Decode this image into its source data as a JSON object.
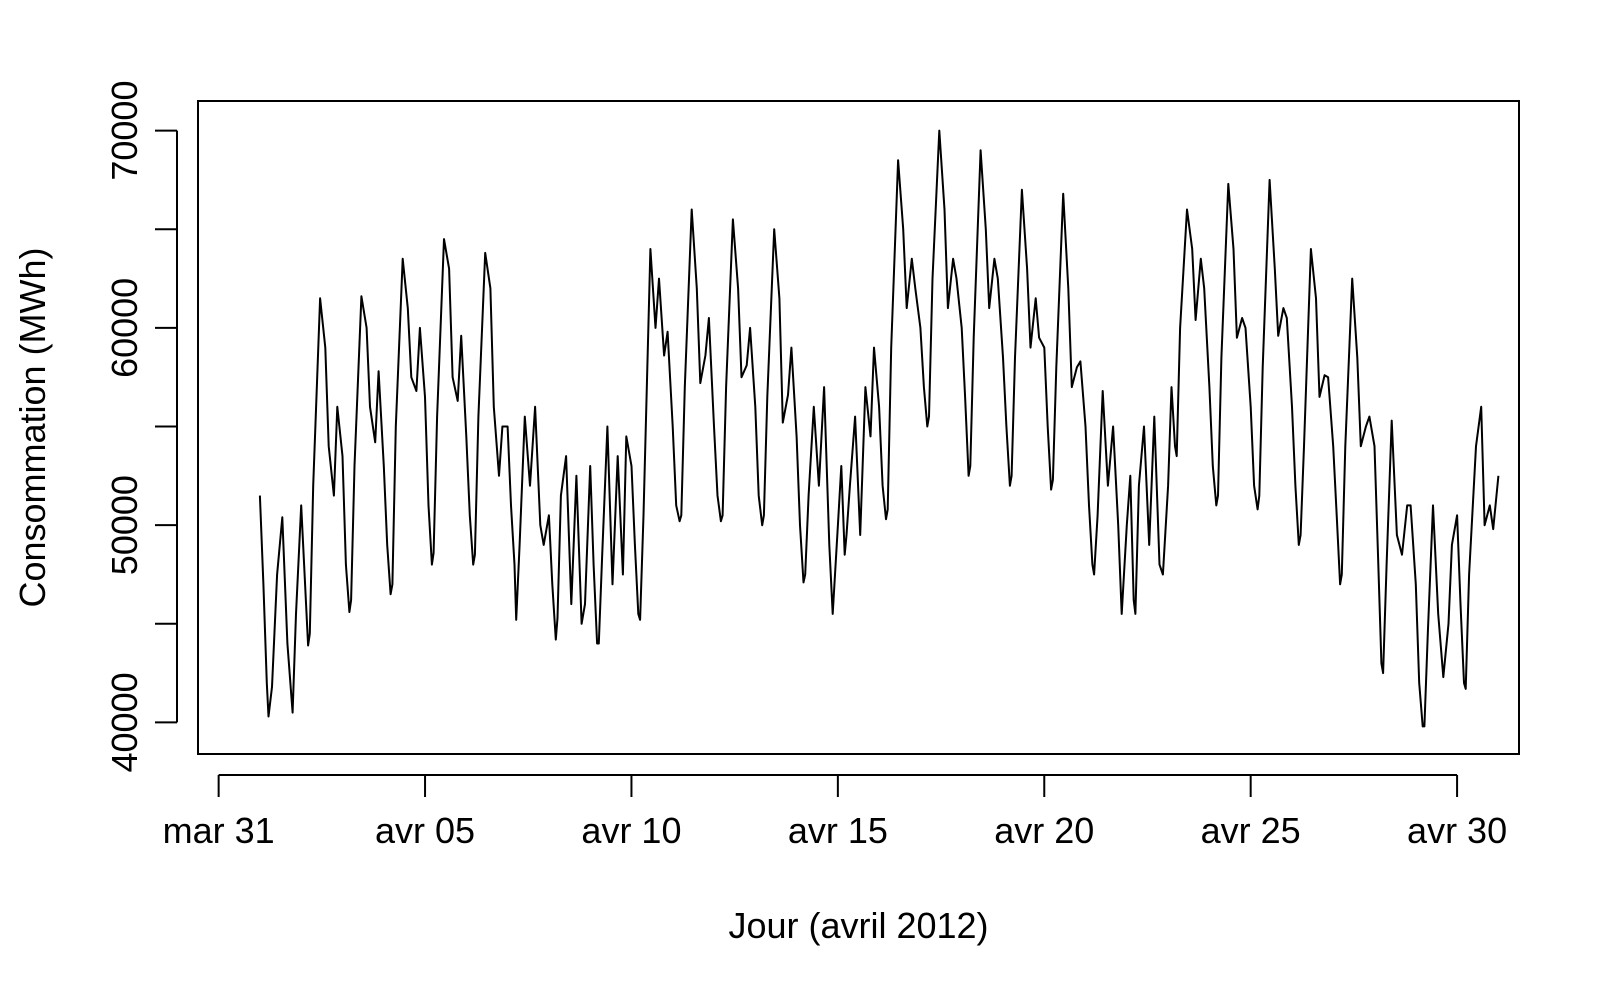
{
  "chart_data": {
    "type": "line",
    "xlabel": "Jour (avril 2012)",
    "ylabel": "Consommation (MWh)",
    "xlim": [
      "2012-03-30T12:00",
      "2012-05-01T12:00"
    ],
    "ylim": [
      38400,
      71500
    ],
    "x_ticks": [
      {
        "date": "2012-03-31",
        "label": "mar 31"
      },
      {
        "date": "2012-04-05",
        "label": "avr 05"
      },
      {
        "date": "2012-04-10",
        "label": "avr 10"
      },
      {
        "date": "2012-04-15",
        "label": "avr 15"
      },
      {
        "date": "2012-04-20",
        "label": "avr 20"
      },
      {
        "date": "2012-04-25",
        "label": "avr 25"
      },
      {
        "date": "2012-04-30",
        "label": "avr 30"
      }
    ],
    "y_ticks": [
      {
        "value": 40000,
        "label": "40000"
      },
      {
        "value": 45000,
        "label": ""
      },
      {
        "value": 50000,
        "label": "50000"
      },
      {
        "value": 55000,
        "label": ""
      },
      {
        "value": 60000,
        "label": "60000"
      },
      {
        "value": 65000,
        "label": ""
      },
      {
        "value": 70000,
        "label": "70000"
      }
    ],
    "grid": false,
    "legend": "none",
    "line_color": "#000000",
    "series": [
      {
        "x": [
          "2012-04-01T00:00",
          "2012-04-01T02:00",
          "2012-04-01T04:00",
          "2012-04-01T05:00",
          "2012-04-01T07:00",
          "2012-04-01T10:00",
          "2012-04-01T13:00",
          "2012-04-01T16:00",
          "2012-04-01T19:00",
          "2012-04-01T21:00",
          "2012-04-02T00:00",
          "2012-04-02T02:00",
          "2012-04-02T04:00",
          "2012-04-02T05:00",
          "2012-04-02T07:00",
          "2012-04-02T11:00",
          "2012-04-02T14:00",
          "2012-04-02T16:00",
          "2012-04-02T19:00",
          "2012-04-02T21:00",
          "2012-04-03T00:00",
          "2012-04-03T02:00",
          "2012-04-03T04:00",
          "2012-04-03T05:00",
          "2012-04-03T07:00",
          "2012-04-03T11:00",
          "2012-04-03T14:00",
          "2012-04-03T16:00",
          "2012-04-03T19:00",
          "2012-04-03T21:00",
          "2012-04-04T00:00",
          "2012-04-04T02:00",
          "2012-04-04T04:00",
          "2012-04-04T05:00",
          "2012-04-04T07:00",
          "2012-04-04T11:00",
          "2012-04-04T14:00",
          "2012-04-04T16:00",
          "2012-04-04T19:00",
          "2012-04-04T21:00",
          "2012-04-05T00:00",
          "2012-04-05T02:00",
          "2012-04-05T04:00",
          "2012-04-05T05:00",
          "2012-04-05T07:00",
          "2012-04-05T11:00",
          "2012-04-05T14:00",
          "2012-04-05T16:00",
          "2012-04-05T19:00",
          "2012-04-05T21:00",
          "2012-04-06T00:00",
          "2012-04-06T02:00",
          "2012-04-06T04:00",
          "2012-04-06T05:00",
          "2012-04-06T07:00",
          "2012-04-06T11:00",
          "2012-04-06T14:00",
          "2012-04-06T16:00",
          "2012-04-06T19:00",
          "2012-04-06T21:00",
          "2012-04-07T00:00",
          "2012-04-07T02:00",
          "2012-04-07T04:00",
          "2012-04-07T05:00",
          "2012-04-07T07:00",
          "2012-04-07T10:00",
          "2012-04-07T13:00",
          "2012-04-07T16:00",
          "2012-04-07T19:00",
          "2012-04-07T21:00",
          "2012-04-08T00:00",
          "2012-04-08T02:00",
          "2012-04-08T04:00",
          "2012-04-08T05:00",
          "2012-04-08T07:00",
          "2012-04-08T10:00",
          "2012-04-08T13:00",
          "2012-04-08T16:00",
          "2012-04-08T19:00",
          "2012-04-08T21:00",
          "2012-04-09T00:00",
          "2012-04-09T02:00",
          "2012-04-09T04:00",
          "2012-04-09T05:00",
          "2012-04-09T07:00",
          "2012-04-09T10:00",
          "2012-04-09T13:00",
          "2012-04-09T16:00",
          "2012-04-09T19:00",
          "2012-04-09T21:00",
          "2012-04-10T00:00",
          "2012-04-10T02:00",
          "2012-04-10T04:00",
          "2012-04-10T05:00",
          "2012-04-10T07:00",
          "2012-04-10T11:00",
          "2012-04-10T14:00",
          "2012-04-10T16:00",
          "2012-04-10T19:00",
          "2012-04-10T21:00",
          "2012-04-11T00:00",
          "2012-04-11T02:00",
          "2012-04-11T04:00",
          "2012-04-11T05:00",
          "2012-04-11T07:00",
          "2012-04-11T11:00",
          "2012-04-11T14:00",
          "2012-04-11T16:00",
          "2012-04-11T19:00",
          "2012-04-11T21:00",
          "2012-04-12T00:00",
          "2012-04-12T02:00",
          "2012-04-12T04:00",
          "2012-04-12T05:00",
          "2012-04-12T07:00",
          "2012-04-12T11:00",
          "2012-04-12T14:00",
          "2012-04-12T16:00",
          "2012-04-12T19:00",
          "2012-04-12T21:00",
          "2012-04-13T00:00",
          "2012-04-13T02:00",
          "2012-04-13T04:00",
          "2012-04-13T05:00",
          "2012-04-13T07:00",
          "2012-04-13T11:00",
          "2012-04-13T14:00",
          "2012-04-13T16:00",
          "2012-04-13T19:00",
          "2012-04-13T21:00",
          "2012-04-14T00:00",
          "2012-04-14T02:00",
          "2012-04-14T04:00",
          "2012-04-14T05:00",
          "2012-04-14T07:00",
          "2012-04-14T10:00",
          "2012-04-14T13:00",
          "2012-04-14T16:00",
          "2012-04-14T19:00",
          "2012-04-14T21:00",
          "2012-04-15T00:00",
          "2012-04-15T02:00",
          "2012-04-15T04:00",
          "2012-04-15T05:00",
          "2012-04-15T07:00",
          "2012-04-15T10:00",
          "2012-04-15T13:00",
          "2012-04-15T16:00",
          "2012-04-15T19:00",
          "2012-04-15T21:00",
          "2012-04-16T00:00",
          "2012-04-16T02:00",
          "2012-04-16T04:00",
          "2012-04-16T05:00",
          "2012-04-16T07:00",
          "2012-04-16T11:00",
          "2012-04-16T14:00",
          "2012-04-16T16:00",
          "2012-04-16T19:00",
          "2012-04-16T21:00",
          "2012-04-17T00:00",
          "2012-04-17T02:00",
          "2012-04-17T04:00",
          "2012-04-17T05:00",
          "2012-04-17T07:00",
          "2012-04-17T11:00",
          "2012-04-17T14:00",
          "2012-04-17T16:00",
          "2012-04-17T19:00",
          "2012-04-17T21:00",
          "2012-04-18T00:00",
          "2012-04-18T02:00",
          "2012-04-18T04:00",
          "2012-04-18T05:00",
          "2012-04-18T07:00",
          "2012-04-18T11:00",
          "2012-04-18T14:00",
          "2012-04-18T16:00",
          "2012-04-18T19:00",
          "2012-04-18T21:00",
          "2012-04-19T00:00",
          "2012-04-19T02:00",
          "2012-04-19T04:00",
          "2012-04-19T05:00",
          "2012-04-19T07:00",
          "2012-04-19T11:00",
          "2012-04-19T14:00",
          "2012-04-19T16:00",
          "2012-04-19T19:00",
          "2012-04-19T21:00",
          "2012-04-20T00:00",
          "2012-04-20T02:00",
          "2012-04-20T04:00",
          "2012-04-20T05:00",
          "2012-04-20T07:00",
          "2012-04-20T11:00",
          "2012-04-20T14:00",
          "2012-04-20T16:00",
          "2012-04-20T19:00",
          "2012-04-20T21:00",
          "2012-04-21T00:00",
          "2012-04-21T02:00",
          "2012-04-21T04:00",
          "2012-04-21T05:00",
          "2012-04-21T07:00",
          "2012-04-21T10:00",
          "2012-04-21T13:00",
          "2012-04-21T16:00",
          "2012-04-21T19:00",
          "2012-04-21T21:00",
          "2012-04-22T00:00",
          "2012-04-22T02:00",
          "2012-04-22T04:00",
          "2012-04-22T05:00",
          "2012-04-22T07:00",
          "2012-04-22T10:00",
          "2012-04-22T13:00",
          "2012-04-22T16:00",
          "2012-04-22T19:00",
          "2012-04-22T21:00",
          "2012-04-23T00:00",
          "2012-04-23T02:00",
          "2012-04-23T04:00",
          "2012-04-23T05:00",
          "2012-04-23T07:00",
          "2012-04-23T11:00",
          "2012-04-23T14:00",
          "2012-04-23T16:00",
          "2012-04-23T19:00",
          "2012-04-23T21:00",
          "2012-04-24T00:00",
          "2012-04-24T02:00",
          "2012-04-24T04:00",
          "2012-04-24T05:00",
          "2012-04-24T07:00",
          "2012-04-24T11:00",
          "2012-04-24T14:00",
          "2012-04-24T16:00",
          "2012-04-24T19:00",
          "2012-04-24T21:00",
          "2012-04-25T00:00",
          "2012-04-25T02:00",
          "2012-04-25T04:00",
          "2012-04-25T05:00",
          "2012-04-25T07:00",
          "2012-04-25T11:00",
          "2012-04-25T14:00",
          "2012-04-25T16:00",
          "2012-04-25T19:00",
          "2012-04-25T21:00",
          "2012-04-26T00:00",
          "2012-04-26T02:00",
          "2012-04-26T04:00",
          "2012-04-26T05:00",
          "2012-04-26T07:00",
          "2012-04-26T11:00",
          "2012-04-26T14:00",
          "2012-04-26T16:00",
          "2012-04-26T19:00",
          "2012-04-26T21:00",
          "2012-04-27T00:00",
          "2012-04-27T02:00",
          "2012-04-27T04:00",
          "2012-04-27T05:00",
          "2012-04-27T07:00",
          "2012-04-27T11:00",
          "2012-04-27T14:00",
          "2012-04-27T16:00",
          "2012-04-27T19:00",
          "2012-04-27T21:00",
          "2012-04-28T00:00",
          "2012-04-28T02:00",
          "2012-04-28T04:00",
          "2012-04-28T05:00",
          "2012-04-28T07:00",
          "2012-04-28T10:00",
          "2012-04-28T13:00",
          "2012-04-28T16:00",
          "2012-04-28T19:00",
          "2012-04-28T21:00",
          "2012-04-29T00:00",
          "2012-04-29T02:00",
          "2012-04-29T04:00",
          "2012-04-29T05:00",
          "2012-04-29T07:00",
          "2012-04-29T10:00",
          "2012-04-29T13:00",
          "2012-04-29T16:00",
          "2012-04-29T19:00",
          "2012-04-29T21:00",
          "2012-04-30T00:00",
          "2012-04-30T02:00",
          "2012-04-30T04:00",
          "2012-04-30T05:00",
          "2012-04-30T07:00",
          "2012-04-30T11:00",
          "2012-04-30T14:00",
          "2012-04-30T16:00",
          "2012-04-30T19:00",
          "2012-04-30T21:00",
          "2012-05-01T00:00"
        ],
        "y": [
          51500,
          47000,
          42000,
          40300,
          41800,
          47500,
          50400,
          44000,
          40500,
          45500,
          51000,
          47500,
          43900,
          44500,
          52000,
          61500,
          59000,
          54000,
          51500,
          56000,
          53500,
          48000,
          45600,
          46200,
          53000,
          61600,
          60000,
          56000,
          54200,
          57800,
          53000,
          49000,
          46500,
          47000,
          55000,
          63500,
          61000,
          57500,
          56800,
          60000,
          56500,
          51000,
          48000,
          48600,
          55500,
          64500,
          63000,
          57500,
          56300,
          59600,
          54500,
          50500,
          48000,
          48500,
          55500,
          63800,
          62000,
          56000,
          52500,
          55000,
          55000,
          51000,
          48000,
          45200,
          49000,
          55500,
          52000,
          56000,
          50000,
          49000,
          50500,
          47000,
          44200,
          45300,
          51500,
          53500,
          46000,
          52500,
          45000,
          46000,
          53000,
          48000,
          44000,
          44000,
          48500,
          55000,
          47000,
          53500,
          47500,
          54500,
          53000,
          49000,
          45500,
          45200,
          50500,
          64000,
          60000,
          62500,
          58600,
          59800,
          55000,
          51000,
          50200,
          50500,
          57000,
          66000,
          62000,
          57200,
          58600,
          60500,
          55000,
          51500,
          50200,
          50500,
          57000,
          65500,
          62000,
          57500,
          58100,
          60000,
          56000,
          51500,
          50000,
          50500,
          56500,
          65000,
          61500,
          55200,
          56600,
          59000,
          54500,
          50000,
          47100,
          47500,
          51500,
          56000,
          52000,
          57000,
          49000,
          45500,
          50000,
          53000,
          48500,
          49500,
          52000,
          55500,
          49500,
          57000,
          54500,
          59000,
          56000,
          52000,
          50300,
          50800,
          59000,
          68500,
          65000,
          61000,
          63500,
          62000,
          60000,
          57000,
          55000,
          55500,
          62500,
          70000,
          66000,
          61000,
          63500,
          62500,
          60000,
          56500,
          52500,
          53000,
          59500,
          69000,
          65000,
          61000,
          63500,
          62500,
          58500,
          55000,
          52000,
          52500,
          58500,
          67000,
          63000,
          59000,
          61500,
          59500,
          59000,
          55000,
          51800,
          52300,
          58000,
          66800,
          62000,
          57000,
          58000,
          58300,
          55000,
          51000,
          48000,
          47500,
          50500,
          56800,
          52000,
          55000,
          50000,
          45500,
          50000,
          52500,
          46200,
          45500,
          52000,
          55000,
          49000,
          55500,
          48000,
          47500,
          52000,
          57000,
          54000,
          53500,
          60000,
          66000,
          64000,
          60400,
          63500,
          62000,
          57000,
          53000,
          51000,
          51500,
          58500,
          67300,
          64000,
          59500,
          60500,
          60000,
          56000,
          52000,
          50800,
          51500,
          58000,
          67500,
          63000,
          59600,
          61000,
          60500,
          56000,
          52000,
          49000,
          49500,
          54000,
          64000,
          61500,
          56500,
          57600,
          57500,
          54000,
          50500,
          47000,
          47500,
          54000,
          62500,
          58500,
          54000,
          55000,
          55500,
          54000,
          48500,
          43000,
          42500,
          48000,
          55300,
          49500,
          48500,
          51000,
          51000,
          47000,
          42000,
          39800,
          39800,
          44500,
          51000,
          45500,
          42300,
          45000,
          49000,
          50500,
          46000,
          42000,
          41700,
          47500,
          54000,
          56000,
          50000,
          51000,
          49800,
          52500
        ]
      }
    ]
  }
}
